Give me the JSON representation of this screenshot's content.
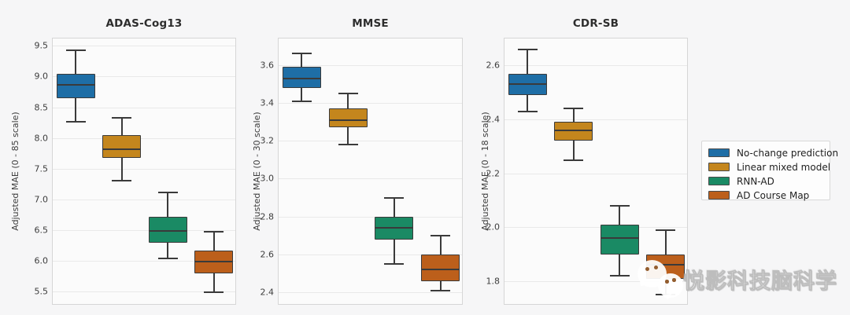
{
  "figure": {
    "background": "#f6f6f7",
    "plot_background": "#fbfbfb",
    "grid_color": "#e9e9e9",
    "spine_color": "#d6d6d6",
    "box_line_color": "#3a3a3a"
  },
  "legend": {
    "position": "right",
    "items": [
      {
        "label": "No-change prediction",
        "color": "#1e6ea6"
      },
      {
        "label": "Linear mixed model",
        "color": "#c4861d"
      },
      {
        "label": "RNN-AD",
        "color": "#1a8a64"
      },
      {
        "label": "AD Course Map",
        "color": "#bc5f1b"
      }
    ]
  },
  "watermark": {
    "icon": "wechat-icon",
    "text": "悦影科技脑科学"
  },
  "chart_data": [
    {
      "type": "box",
      "title": "ADAS-Cog13",
      "ylabel": "Adjusted MAE (0 - 85 scale)",
      "ylim": [
        5.27,
        9.62
      ],
      "yticks": [
        5.5,
        6.0,
        6.5,
        7.0,
        7.5,
        8.0,
        8.5,
        9.0,
        9.5
      ],
      "grid": "horizontal",
      "series": [
        {
          "name": "No-change prediction",
          "whislo": 8.27,
          "q1": 8.65,
          "med": 8.87,
          "q3": 9.04,
          "whishi": 9.43
        },
        {
          "name": "Linear mixed model",
          "whislo": 7.31,
          "q1": 7.68,
          "med": 7.81,
          "q3": 8.04,
          "whishi": 8.33
        },
        {
          "name": "RNN-AD",
          "whislo": 6.04,
          "q1": 6.29,
          "med": 6.48,
          "q3": 6.72,
          "whishi": 7.11
        },
        {
          "name": "AD Course Map",
          "whislo": 5.49,
          "q1": 5.79,
          "med": 5.99,
          "q3": 6.16,
          "whishi": 6.47
        }
      ]
    },
    {
      "type": "box",
      "title": "MMSE",
      "ylabel": "Adjusted MAE (0 - 30 scale)",
      "ylim": [
        2.33,
        3.74
      ],
      "yticks": [
        2.4,
        2.6,
        2.8,
        3.0,
        3.2,
        3.4,
        3.6
      ],
      "grid": "horizontal",
      "series": [
        {
          "name": "No-change prediction",
          "whislo": 3.41,
          "q1": 3.48,
          "med": 3.53,
          "q3": 3.59,
          "whishi": 3.66
        },
        {
          "name": "Linear mixed model",
          "whislo": 3.18,
          "q1": 3.27,
          "med": 3.31,
          "q3": 3.37,
          "whishi": 3.45
        },
        {
          "name": "RNN-AD",
          "whislo": 2.55,
          "q1": 2.68,
          "med": 2.74,
          "q3": 2.8,
          "whishi": 2.9
        },
        {
          "name": "AD Course Map",
          "whislo": 2.41,
          "q1": 2.46,
          "med": 2.52,
          "q3": 2.6,
          "whishi": 2.7
        }
      ]
    },
    {
      "type": "box",
      "title": "CDR-SB",
      "ylabel": "Adjusted MAE (0 - 18 scale)",
      "ylim": [
        1.71,
        2.7
      ],
      "yticks": [
        1.8,
        2.0,
        2.2,
        2.4,
        2.6
      ],
      "grid": "horizontal",
      "series": [
        {
          "name": "No-change prediction",
          "whislo": 2.43,
          "q1": 2.49,
          "med": 2.53,
          "q3": 2.57,
          "whishi": 2.66
        },
        {
          "name": "Linear mixed model",
          "whislo": 2.25,
          "q1": 2.32,
          "med": 2.36,
          "q3": 2.39,
          "whishi": 2.44
        },
        {
          "name": "RNN-AD",
          "whislo": 1.82,
          "q1": 1.9,
          "med": 1.96,
          "q3": 2.01,
          "whishi": 2.08
        },
        {
          "name": "AD Course Map",
          "whislo": 1.75,
          "q1": 1.81,
          "med": 1.86,
          "q3": 1.9,
          "whishi": 1.99
        }
      ]
    }
  ]
}
